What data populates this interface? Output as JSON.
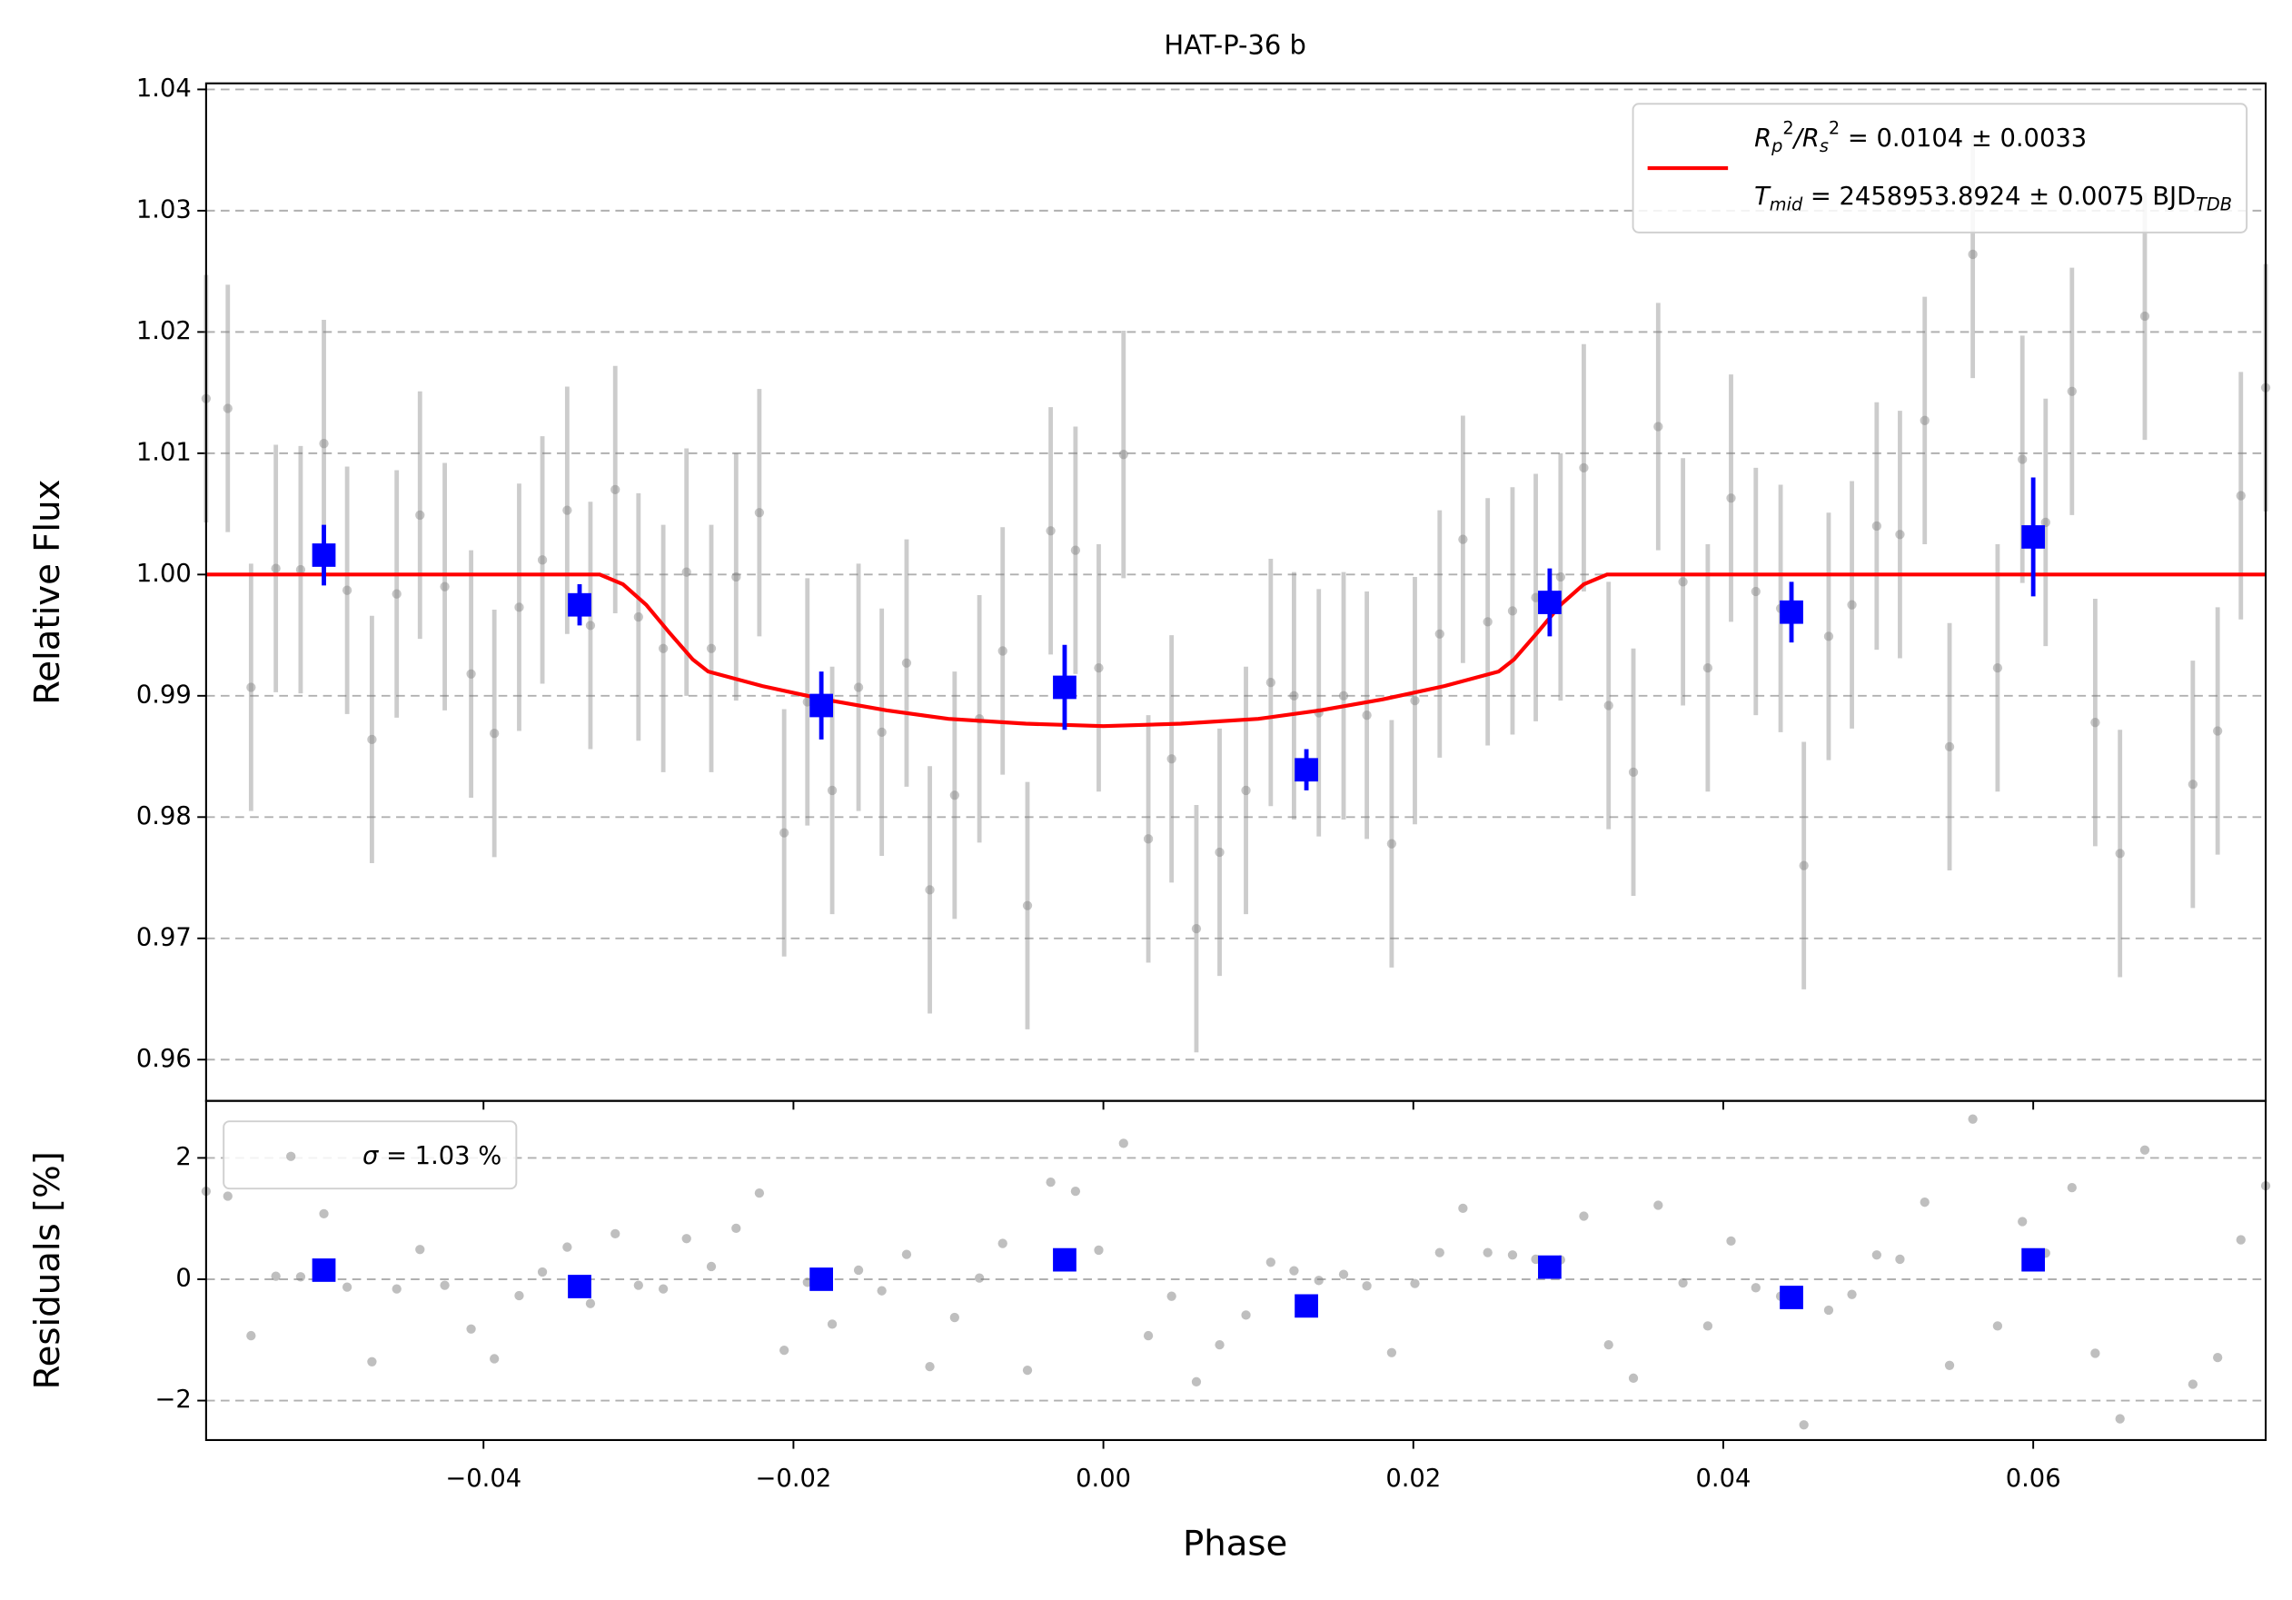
{
  "chart_data": [
    {
      "type": "scatter",
      "title": "HAT-P-36 b",
      "ylabel": "Relative Flux",
      "xlim": [
        -0.0579,
        0.075
      ],
      "ylim": [
        0.9566,
        1.0405
      ],
      "xticks": [
        -0.04,
        -0.02,
        0,
        0.02,
        0.04,
        0.06
      ],
      "yticks": [
        0.96,
        0.97,
        0.98,
        0.99,
        {
          "value": 1,
          "label": "1.00"
        },
        1.01,
        1.02,
        1.03,
        1.04
      ],
      "grid": true,
      "legend": "upper right",
      "series": [
        {
          "type": "errorbar",
          "marker": "circle",
          "color": "#808080",
          "alpha": 0.45,
          "x": [
            -0.0579,
            -0.0565,
            -0.055,
            -0.0534,
            -0.0518,
            -0.0503,
            -0.0488,
            -0.0472,
            -0.0456,
            -0.0441,
            -0.0425,
            -0.0408,
            -0.0393,
            -0.0377,
            -0.0362,
            -0.0346,
            -0.0331,
            -0.0315,
            -0.03,
            -0.0284,
            -0.0269,
            -0.0253,
            -0.0237,
            -0.0222,
            -0.0206,
            -0.0191,
            -0.0175,
            -0.0158,
            -0.0143,
            -0.0127,
            -0.0112,
            -0.0096,
            -0.008,
            -0.0065,
            -0.0049,
            -0.0034,
            -0.0018,
            -0.0003,
            0.0013,
            0.0029,
            0.0044,
            0.006,
            0.0075,
            0.0092,
            0.0108,
            0.0123,
            0.0139,
            0.0155,
            0.017,
            0.0186,
            0.0201,
            0.0217,
            0.0232,
            0.0248,
            0.0264,
            0.0279,
            0.0295,
            0.031,
            0.0326,
            0.0342,
            0.0358,
            0.0374,
            0.039,
            0.0405,
            0.0421,
            0.0437,
            0.0452,
            0.0468,
            0.0483,
            0.0499,
            0.0514,
            0.053,
            0.0546,
            0.0561,
            0.0577,
            0.0593,
            0.0608,
            0.0625,
            0.064,
            0.0656,
            0.0672,
            0.0703,
            0.0719,
            0.0734,
            0.075
          ],
          "values": [
            1.0145,
            1.0137,
            0.9907,
            1.0005,
            1.0004,
            1.0108,
            0.9987,
            0.9864,
            0.9984,
            1.0049,
            0.999,
            0.9918,
            0.9869,
            0.9973,
            1.0012,
            1.0053,
            0.9958,
            1.007,
            0.9965,
            0.9939,
            1.0002,
            0.9939,
            0.9998,
            1.0051,
            0.9787,
            0.9895,
            0.9822,
            0.9907,
            0.987,
            0.9927,
            0.974,
            0.9818,
            0.9881,
            0.9937,
            0.9727,
            1.0036,
            1.002,
            0.9923,
            1.0099,
            0.9782,
            0.9848,
            0.9708,
            0.9771,
            0.9822,
            0.9911,
            0.99,
            0.9886,
            0.99,
            0.9884,
            0.9778,
            0.9896,
            0.9951,
            1.0029,
            0.9961,
            0.997,
            0.9981,
            0.9998,
            1.0088,
            0.9892,
            0.9837,
            1.0122,
            0.9994,
            0.9923,
            1.0063,
            0.9986,
            0.9972,
            0.976,
            0.9949,
            0.9975,
            1.004,
            1.0033,
            1.0127,
            0.9858,
            1.0264,
            0.9923,
            1.0095,
            1.0043,
            1.0151,
            0.9878,
            0.977,
            1.0213,
            0.9827,
            0.9871,
            1.0065,
            1.0154
          ],
          "errors": [
            0.0102,
            0.0102,
            0.0102,
            0.0102,
            0.0102,
            0.0102,
            0.0102,
            0.0102,
            0.0102,
            0.0102,
            0.0102,
            0.0102,
            0.0102,
            0.0102,
            0.0102,
            0.0102,
            0.0102,
            0.0102,
            0.0102,
            0.0102,
            0.0102,
            0.0102,
            0.0102,
            0.0102,
            0.0102,
            0.0102,
            0.0102,
            0.0102,
            0.0102,
            0.0102,
            0.0102,
            0.0102,
            0.0102,
            0.0102,
            0.0102,
            0.0102,
            0.0102,
            0.0102,
            0.0102,
            0.0102,
            0.0102,
            0.0102,
            0.0102,
            0.0102,
            0.0102,
            0.0102,
            0.0102,
            0.0102,
            0.0102,
            0.0102,
            0.0102,
            0.0102,
            0.0102,
            0.0102,
            0.0102,
            0.0102,
            0.0102,
            0.0102,
            0.0102,
            0.0102,
            0.0102,
            0.0102,
            0.0102,
            0.0102,
            0.0102,
            0.0102,
            0.0102,
            0.0102,
            0.0102,
            0.0102,
            0.0102,
            0.0102,
            0.0102,
            0.0102,
            0.0102,
            0.0102,
            0.0102,
            0.0102,
            0.0102,
            0.0102,
            0.0102,
            0.0102,
            0.0102,
            0.0102,
            0.0102
          ]
        },
        {
          "type": "line",
          "color": "#ff0000",
          "name": [
            [
              {
                "t": "R",
                "f": "it"
              },
              {
                "t": "p",
                "f": "sub"
              },
              {
                "t": "2",
                "f": "sup"
              },
              {
                "t": "/R",
                "f": "it"
              },
              {
                "t": "s",
                "f": "sub"
              },
              {
                "t": "2",
                "f": "sup"
              },
              {
                "t": " = 0.0104 ± 0.0033",
                "f": "n"
              }
            ],
            [
              {
                "t": "T",
                "f": "it"
              },
              {
                "t": "mid",
                "f": "sub"
              },
              {
                "t": " = 2458953.8924 ± 0.0075 BJD",
                "f": "n"
              },
              {
                "t": "TDB",
                "f": "sub"
              }
            ]
          ],
          "x": [
            -0.0579,
            -0.0325,
            -0.031,
            -0.0295,
            -0.028,
            -0.0265,
            -0.0255,
            -0.022,
            -0.018,
            -0.014,
            -0.01,
            -0.005,
            0,
            0.005,
            0.01,
            0.014,
            0.018,
            0.022,
            0.0255,
            0.0265,
            0.028,
            0.0295,
            0.031,
            0.0325,
            0.075
          ],
          "values": [
            1,
            1,
            0.9992,
            0.9975,
            0.9952,
            0.993,
            0.992,
            0.9908,
            0.9897,
            0.9888,
            0.9881,
            0.9877,
            0.9875,
            0.9877,
            0.9881,
            0.9888,
            0.9897,
            0.9908,
            0.992,
            0.993,
            0.9952,
            0.9975,
            0.9992,
            1,
            1
          ]
        },
        {
          "type": "errorbar",
          "marker": "square",
          "color": "#0000ff",
          "alpha": 1,
          "x": [
            -0.0503,
            -0.0338,
            -0.0182,
            -0.0025,
            0.0131,
            0.0288,
            0.0444,
            0.06
          ],
          "values": [
            1.0016,
            0.9975,
            0.9892,
            0.9907,
            0.9839,
            0.9977,
            0.9969,
            1.0031
          ],
          "errors": [
            0.0025,
            0.0017,
            0.0028,
            0.0035,
            0.0017,
            0.0028,
            0.0025,
            0.0049
          ]
        }
      ]
    },
    {
      "type": "scatter",
      "ylabel": "Residuals [%]",
      "xlabel": "Phase",
      "xlim": [
        -0.0579,
        0.075
      ],
      "ylim": [
        -2.65,
        2.94
      ],
      "xticks": [
        {
          "value": -0.04,
          "label": "−0.04"
        },
        {
          "value": -0.02,
          "label": "−0.02"
        },
        {
          "value": 0,
          "label": "0.00"
        },
        {
          "value": 0.02,
          "label": "0.02"
        },
        {
          "value": 0.04,
          "label": "0.04"
        },
        {
          "value": 0.06,
          "label": "0.06"
        }
      ],
      "yticks": [
        {
          "value": -2,
          "label": "−2"
        },
        0,
        2
      ],
      "grid": true,
      "legend": "upper left",
      "series": [
        {
          "type": "scatter",
          "marker": "circle",
          "color": "#808080",
          "alpha": 0.5,
          "name": [
            [
              {
                "t": "σ",
                "f": "it"
              },
              {
                "t": " = 1.03 %",
                "f": "n"
              }
            ]
          ],
          "x": [
            -0.0579,
            -0.0565,
            -0.055,
            -0.0534,
            -0.0518,
            -0.0503,
            -0.0488,
            -0.0472,
            -0.0456,
            -0.0441,
            -0.0425,
            -0.0408,
            -0.0393,
            -0.0377,
            -0.0362,
            -0.0346,
            -0.0331,
            -0.0315,
            -0.03,
            -0.0284,
            -0.0269,
            -0.0253,
            -0.0237,
            -0.0222,
            -0.0206,
            -0.0191,
            -0.0175,
            -0.0158,
            -0.0143,
            -0.0127,
            -0.0112,
            -0.0096,
            -0.008,
            -0.0065,
            -0.0049,
            -0.0034,
            -0.0018,
            -0.0003,
            0.0013,
            0.0029,
            0.0044,
            0.006,
            0.0075,
            0.0092,
            0.0108,
            0.0123,
            0.0139,
            0.0155,
            0.017,
            0.0186,
            0.0201,
            0.0217,
            0.0232,
            0.0248,
            0.0264,
            0.0279,
            0.0295,
            0.031,
            0.0326,
            0.0342,
            0.0358,
            0.0374,
            0.039,
            0.0405,
            0.0421,
            0.0437,
            0.0452,
            0.0468,
            0.0483,
            0.0499,
            0.0514,
            0.053,
            0.0546,
            0.0561,
            0.0577,
            0.0593,
            0.0608,
            0.0625,
            0.064,
            0.0656,
            0.0672,
            0.0703,
            0.0719,
            0.0734,
            0.075
          ],
          "values": [
            1.45,
            1.37,
            -0.93,
            0.05,
            0.04,
            1.08,
            -0.13,
            -1.36,
            -0.16,
            0.49,
            -0.1,
            -0.82,
            -1.31,
            -0.27,
            0.12,
            0.53,
            -0.4,
            0.75,
            -0.1,
            -0.16,
            0.67,
            0.21,
            0.84,
            1.42,
            -1.17,
            -0.05,
            -0.74,
            0.15,
            -0.19,
            0.41,
            -1.44,
            -0.63,
            0.02,
            0.59,
            -1.5,
            1.6,
            1.45,
            0.48,
            2.24,
            -0.93,
            -0.28,
            -1.69,
            -1.08,
            -0.59,
            0.28,
            0.14,
            -0.02,
            0.08,
            -0.11,
            -1.21,
            -0.07,
            0.44,
            1.17,
            0.44,
            0.4,
            0.33,
            0.32,
            1.04,
            -1.08,
            -1.63,
            1.22,
            -0.06,
            -0.77,
            0.63,
            -0.14,
            -0.28,
            -2.4,
            -0.51,
            -0.25,
            0.4,
            0.33,
            1.27,
            -1.42,
            2.64,
            -0.77,
            0.95,
            0.43,
            1.51,
            -1.22,
            -2.3,
            2.13,
            -1.73,
            -1.29,
            0.65,
            1.54
          ]
        },
        {
          "type": "scatter",
          "marker": "square",
          "color": "#0000ff",
          "alpha": 1,
          "x": [
            -0.0503,
            -0.0338,
            -0.0182,
            -0.0025,
            0.0131,
            0.0288,
            0.0444,
            0.06
          ],
          "values": [
            0.15,
            -0.12,
            0.0,
            0.32,
            -0.44,
            0.2,
            -0.3,
            0.32
          ]
        }
      ]
    }
  ]
}
